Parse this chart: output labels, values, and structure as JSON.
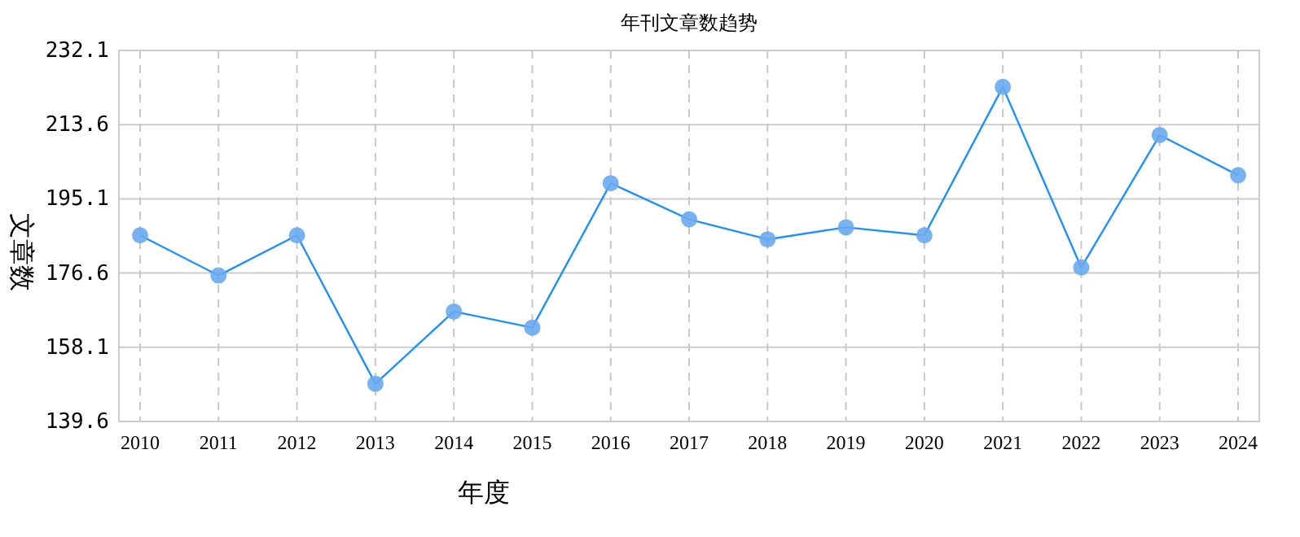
{
  "chart_data": {
    "type": "line",
    "title": "年刊文章数趋势",
    "xlabel": "年度",
    "ylabel": "文章数",
    "categories": [
      "2010",
      "2011",
      "2012",
      "2013",
      "2014",
      "2015",
      "2016",
      "2017",
      "2018",
      "2019",
      "2020",
      "2021",
      "2022",
      "2023",
      "2024"
    ],
    "series": [
      {
        "color": "#1e90ff",
        "values": [
          186,
          176,
          186,
          149,
          167,
          163,
          199,
          190,
          185,
          188,
          186,
          223,
          178,
          211,
          201
        ]
      }
    ],
    "ylim": [
      139.6,
      232.1
    ],
    "yticks": [
      139.6,
      158.1,
      176.6,
      195.1,
      213.6,
      232.1
    ],
    "grid": true,
    "marker": "circle",
    "line_style": "solid"
  }
}
